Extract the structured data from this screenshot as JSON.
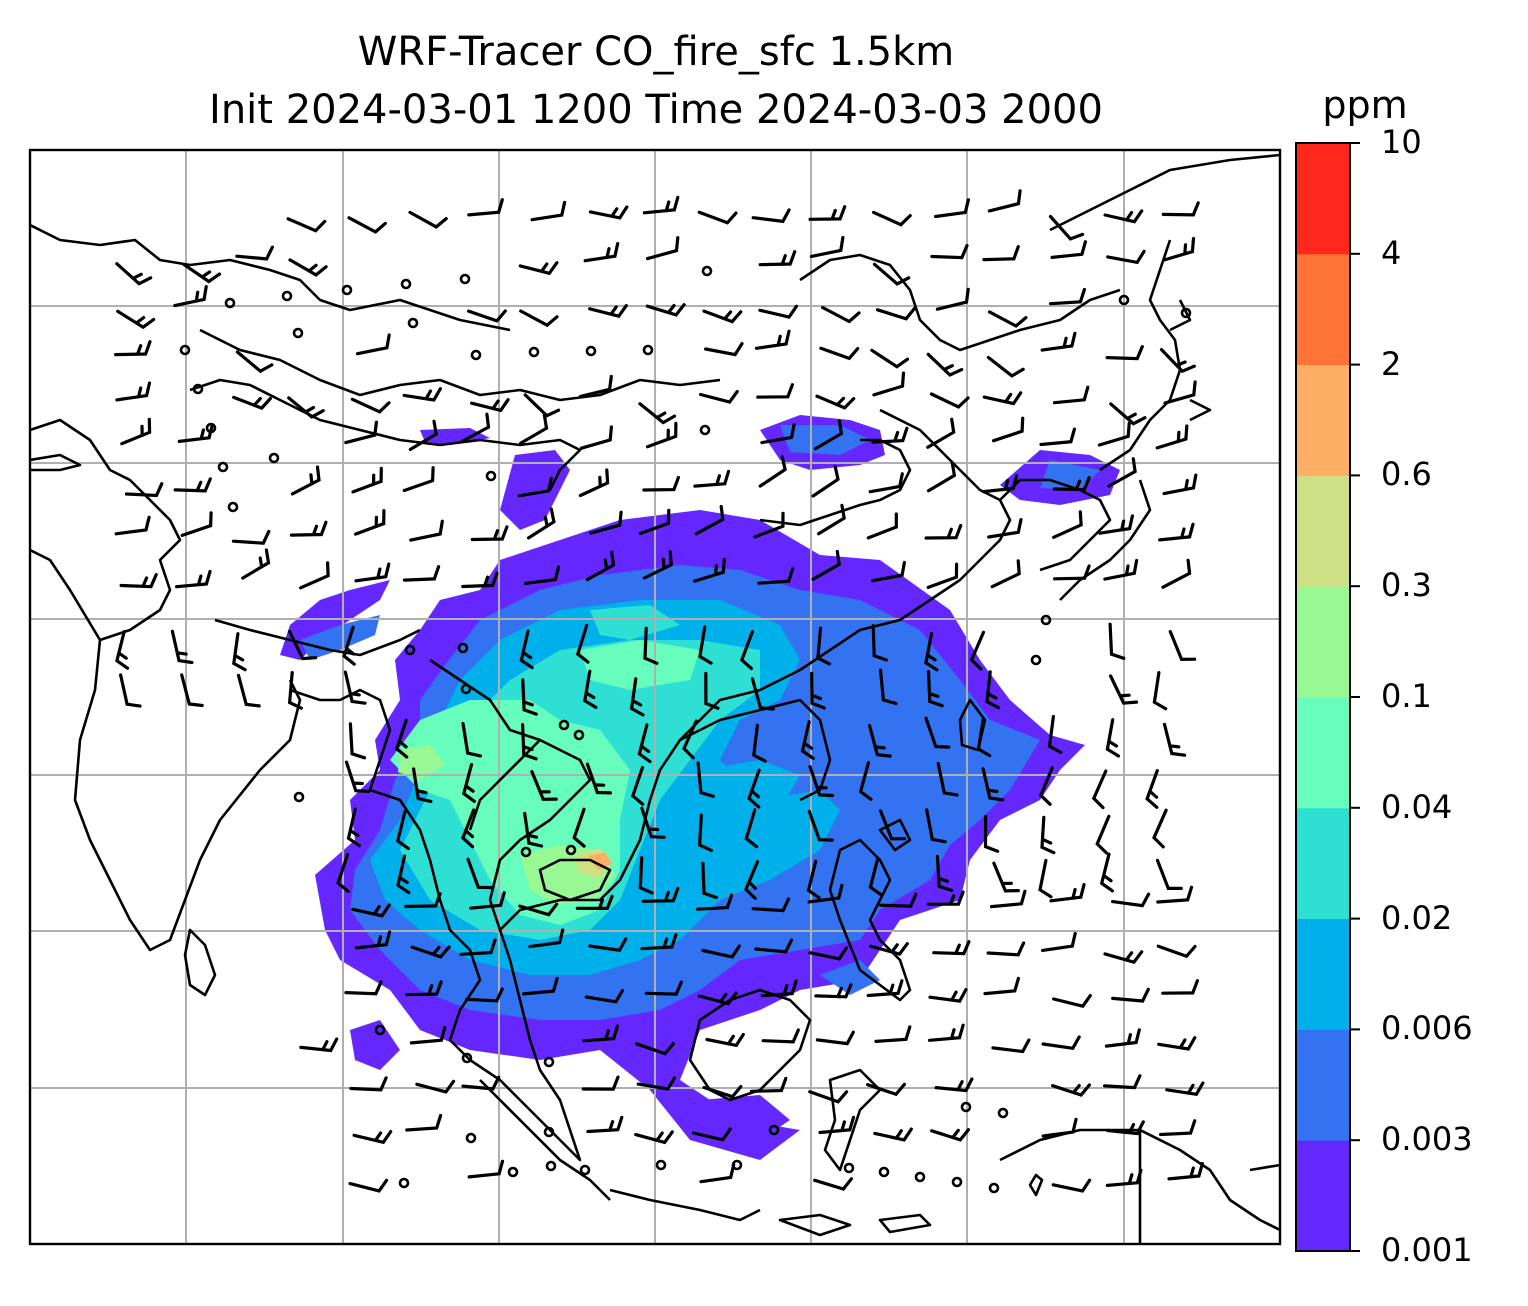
{
  "title": {
    "line1": "WRF-Tracer CO_fire_sfc 1.5km",
    "line2": "Init 2024-03-01 1200 Time 2024-03-03 2000"
  },
  "colorbar": {
    "unit": "ppm",
    "levels": [
      "0.001",
      "0.003",
      "0.006",
      "0.02",
      "0.04",
      "0.1",
      "0.3",
      "0.6",
      "2",
      "4",
      "10"
    ],
    "colors": [
      "#6428ff",
      "#3373f1",
      "#00b0eb",
      "#2ee0d4",
      "#66fdbd",
      "#98f893",
      "#cfdf84",
      "#fdb065",
      "#ff7337",
      "#ff281b"
    ]
  },
  "map": {
    "grid": "on",
    "gridline_color": "#b0b0b0",
    "coastline_color": "#000000",
    "overlay": "wind-barbs",
    "field": "CO_fire_sfc"
  }
}
